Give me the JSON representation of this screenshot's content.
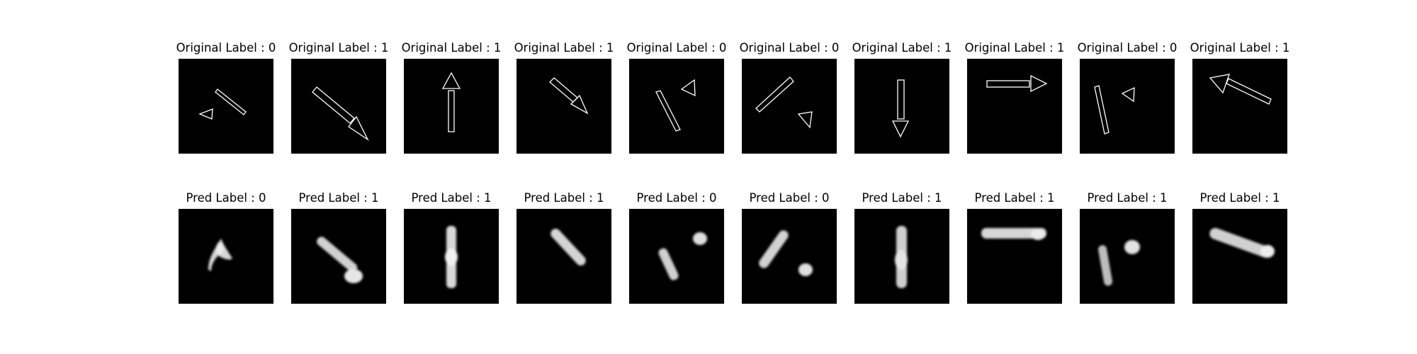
{
  "original": [
    {
      "title": "Original Label : 0"
    },
    {
      "title": "Original Label : 1"
    },
    {
      "title": "Original Label : 1"
    },
    {
      "title": "Original Label : 1"
    },
    {
      "title": "Original Label : 0"
    },
    {
      "title": "Original Label : 0"
    },
    {
      "title": "Original Label : 1"
    },
    {
      "title": "Original Label : 1"
    },
    {
      "title": "Original Label : 0"
    },
    {
      "title": "Original Label : 1"
    }
  ],
  "pred": [
    {
      "title": "Pred Label : 0"
    },
    {
      "title": "Pred Label : 1"
    },
    {
      "title": "Pred Label : 1"
    },
    {
      "title": "Pred Label : 1"
    },
    {
      "title": "Pred Label : 0"
    },
    {
      "title": "Pred Label : 0"
    },
    {
      "title": "Pred Label : 1"
    },
    {
      "title": "Pred Label : 1"
    },
    {
      "title": "Pred Label : 1"
    },
    {
      "title": "Pred Label : 1"
    }
  ]
}
